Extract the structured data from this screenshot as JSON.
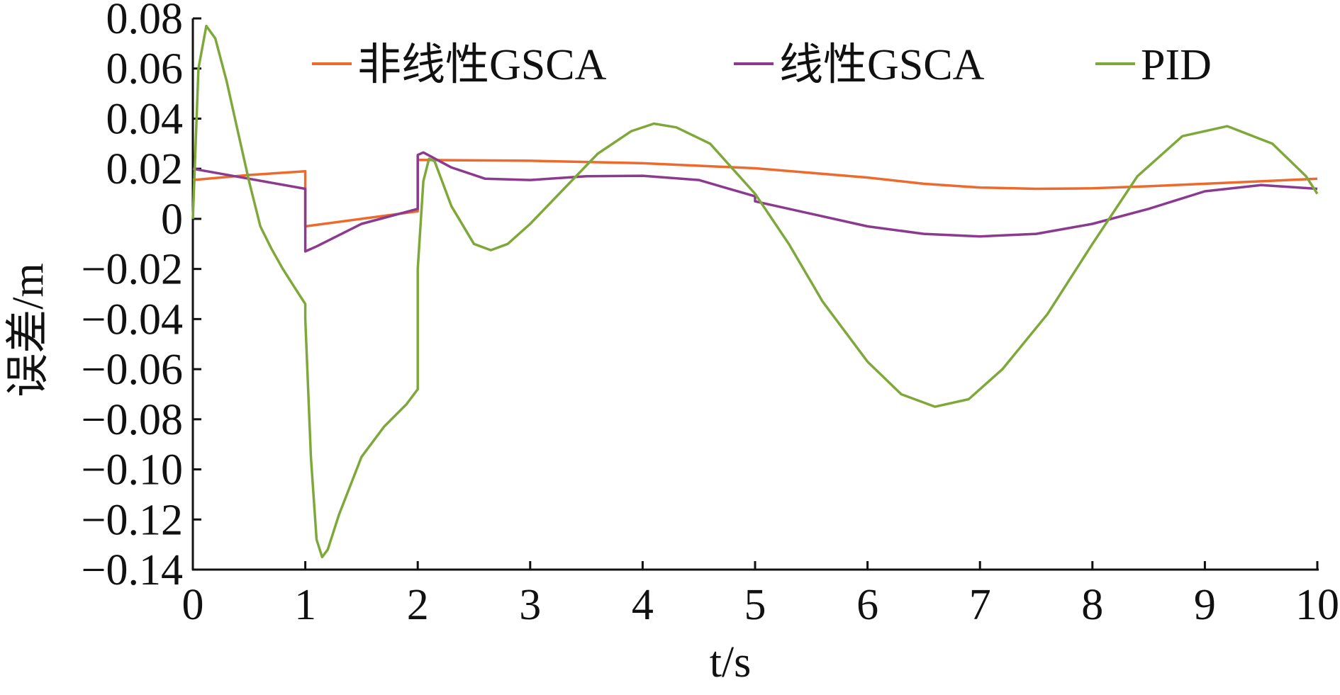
{
  "chart_data": {
    "type": "line",
    "title": "",
    "xlabel": "t/s",
    "ylabel": "误差/m",
    "xlim": [
      0,
      10
    ],
    "ylim": [
      -0.14,
      0.08
    ],
    "xticks": [
      0,
      1,
      2,
      3,
      4,
      5,
      6,
      7,
      8,
      9,
      10
    ],
    "xtick_labels": [
      "0",
      "1",
      "2",
      "3",
      "4",
      "5",
      "6",
      "7",
      "8",
      "9",
      "10"
    ],
    "yticks": [
      0.08,
      0.06,
      0.04,
      0.02,
      0,
      -0.02,
      -0.04,
      -0.06,
      -0.08,
      -0.1,
      -0.12,
      -0.14
    ],
    "ytick_labels": [
      "0.08",
      "0.06",
      "0.04",
      "0.02",
      "0",
      "−0.02",
      "−0.04",
      "−0.06",
      "−0.08",
      "−0.10",
      "−0.12",
      "−0.14"
    ],
    "grid": false,
    "legend_position": "top",
    "series": [
      {
        "name": "非线性GSCA",
        "color": "#ee6a2c",
        "points": [
          [
            0,
            0.0155
          ],
          [
            0.5,
            0.0175
          ],
          [
            1.0,
            0.019
          ],
          [
            1.0,
            -0.003
          ],
          [
            1.5,
            0.0
          ],
          [
            2.0,
            0.003
          ],
          [
            2.0,
            0.0235
          ],
          [
            3.0,
            0.0232
          ],
          [
            4.0,
            0.0222
          ],
          [
            5.0,
            0.0202
          ],
          [
            6.0,
            0.0165
          ],
          [
            6.5,
            0.014
          ],
          [
            7.0,
            0.0125
          ],
          [
            7.5,
            0.012
          ],
          [
            8.0,
            0.0122
          ],
          [
            8.5,
            0.013
          ],
          [
            9.0,
            0.014
          ],
          [
            9.5,
            0.015
          ],
          [
            10.0,
            0.016
          ]
        ]
      },
      {
        "name": "线性GSCA",
        "color": "#8b3a8f",
        "points": [
          [
            0,
            0.02
          ],
          [
            0.5,
            0.016
          ],
          [
            1.0,
            0.012
          ],
          [
            1.0,
            -0.013
          ],
          [
            1.1,
            -0.011
          ],
          [
            1.5,
            -0.002
          ],
          [
            2.0,
            0.004
          ],
          [
            2.0,
            0.0255
          ],
          [
            2.05,
            0.0265
          ],
          [
            2.3,
            0.0205
          ],
          [
            2.6,
            0.016
          ],
          [
            3.0,
            0.0155
          ],
          [
            3.5,
            0.017
          ],
          [
            4.0,
            0.0172
          ],
          [
            4.5,
            0.0155
          ],
          [
            5.0,
            0.009
          ],
          [
            5.0,
            0.007
          ],
          [
            5.5,
            0.002
          ],
          [
            6.0,
            -0.003
          ],
          [
            6.5,
            -0.006
          ],
          [
            7.0,
            -0.007
          ],
          [
            7.5,
            -0.006
          ],
          [
            8.0,
            -0.002
          ],
          [
            8.5,
            0.004
          ],
          [
            9.0,
            0.011
          ],
          [
            9.5,
            0.0135
          ],
          [
            10.0,
            0.012
          ]
        ]
      },
      {
        "name": "PID",
        "color": "#7ea83a",
        "points": [
          [
            0,
            0.0
          ],
          [
            0.05,
            0.06
          ],
          [
            0.12,
            0.077
          ],
          [
            0.2,
            0.072
          ],
          [
            0.3,
            0.055
          ],
          [
            0.4,
            0.035
          ],
          [
            0.5,
            0.015
          ],
          [
            0.6,
            -0.003
          ],
          [
            0.7,
            -0.012
          ],
          [
            0.8,
            -0.02
          ],
          [
            0.9,
            -0.027
          ],
          [
            1.0,
            -0.034
          ],
          [
            1.0,
            -0.04
          ],
          [
            1.05,
            -0.095
          ],
          [
            1.1,
            -0.128
          ],
          [
            1.15,
            -0.135
          ],
          [
            1.2,
            -0.132
          ],
          [
            1.3,
            -0.118
          ],
          [
            1.5,
            -0.095
          ],
          [
            1.7,
            -0.083
          ],
          [
            1.9,
            -0.074
          ],
          [
            2.0,
            -0.068
          ],
          [
            2.0,
            -0.02
          ],
          [
            2.05,
            0.015
          ],
          [
            2.1,
            0.024
          ],
          [
            2.15,
            0.023
          ],
          [
            2.3,
            0.005
          ],
          [
            2.5,
            -0.01
          ],
          [
            2.65,
            -0.0125
          ],
          [
            2.8,
            -0.01
          ],
          [
            3.0,
            -0.002
          ],
          [
            3.3,
            0.012
          ],
          [
            3.6,
            0.026
          ],
          [
            3.9,
            0.035
          ],
          [
            4.1,
            0.038
          ],
          [
            4.3,
            0.0365
          ],
          [
            4.6,
            0.03
          ],
          [
            5.0,
            0.01
          ],
          [
            5.3,
            -0.01
          ],
          [
            5.6,
            -0.033
          ],
          [
            6.0,
            -0.057
          ],
          [
            6.3,
            -0.07
          ],
          [
            6.6,
            -0.075
          ],
          [
            6.9,
            -0.072
          ],
          [
            7.2,
            -0.06
          ],
          [
            7.6,
            -0.038
          ],
          [
            8.0,
            -0.01
          ],
          [
            8.4,
            0.017
          ],
          [
            8.8,
            0.033
          ],
          [
            9.2,
            0.037
          ],
          [
            9.6,
            0.03
          ],
          [
            9.9,
            0.017
          ],
          [
            10.0,
            0.01
          ]
        ]
      }
    ]
  }
}
